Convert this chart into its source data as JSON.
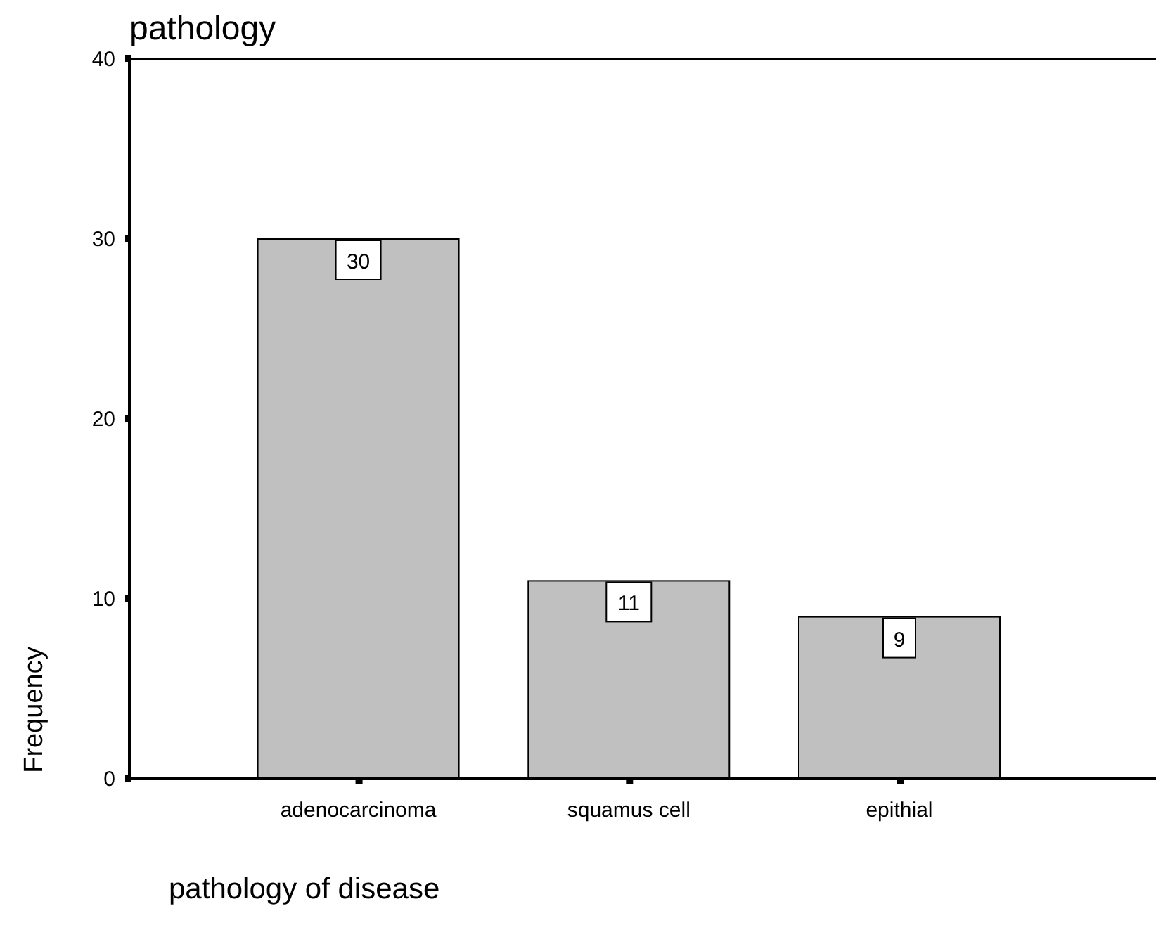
{
  "chart_data": {
    "type": "bar",
    "title": "pathology",
    "xlabel": "pathology of disease",
    "ylabel": "Frequency",
    "categories": [
      "adenocarcinoma",
      "squamus cell",
      "epithial"
    ],
    "values": [
      30,
      11,
      9
    ],
    "color": "#c0c0c0",
    "ylim": [
      0,
      40
    ],
    "yticks": [
      0,
      10,
      20,
      30,
      40
    ],
    "data_labels": true
  }
}
